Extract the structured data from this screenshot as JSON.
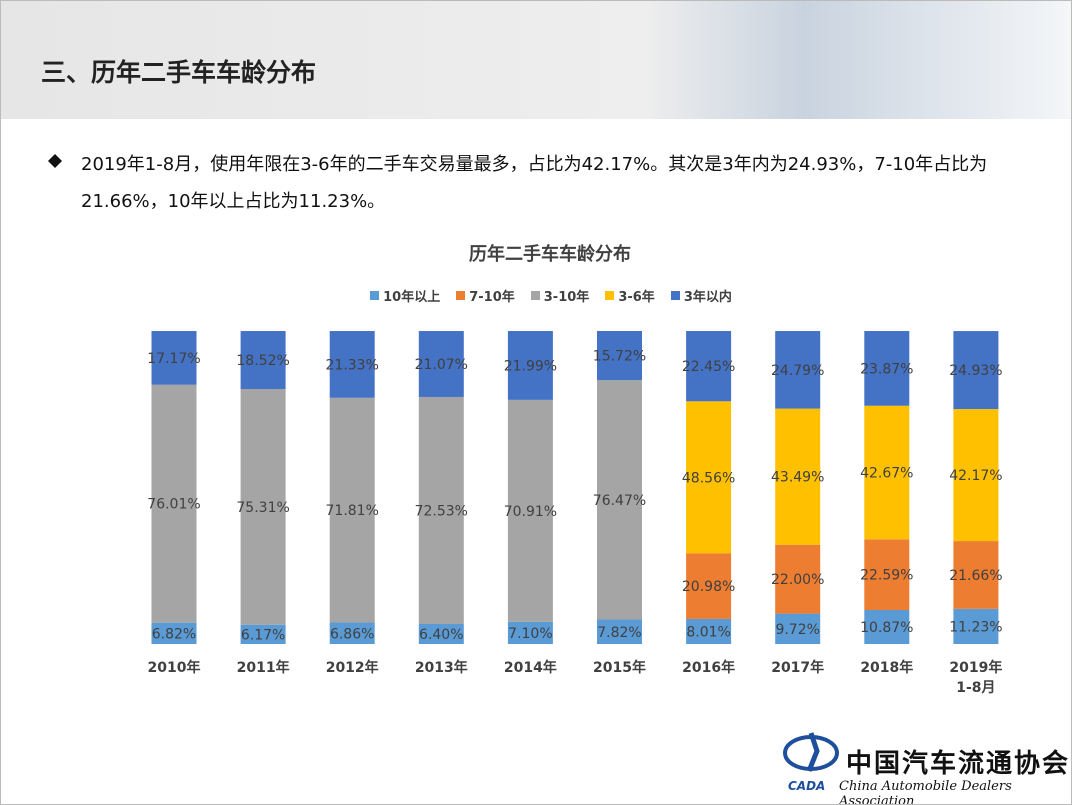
{
  "header": {
    "title": "三、历年二手车车龄分布"
  },
  "bullet": {
    "text": "2019年1-8月，使用年限在3-6年的二手车交易量最多，占比为42.17%。其次是3年内为24.93%，7-10年占比为21.66%，10年以上占比为11.23%。"
  },
  "chart_data": {
    "type": "stacked_bar",
    "title": "历年二手车车龄分布",
    "categories": [
      "2010年",
      "2011年",
      "2012年",
      "2013年",
      "2014年",
      "2015年",
      "2016年",
      "2017年",
      "2018年",
      "2019年\n1-8月"
    ],
    "series": [
      {
        "name": "10年以上",
        "color": "#5b9bd5",
        "values": [
          6.82,
          6.17,
          6.86,
          6.4,
          7.1,
          7.82,
          8.01,
          9.72,
          10.87,
          11.23
        ],
        "value_labels": [
          "6.82%",
          "6.17%",
          "6.86%",
          "6.40%",
          "7.10%",
          "7.82%",
          "8.01%",
          "9.72%",
          "10.87%",
          "11.23%"
        ]
      },
      {
        "name": "7-10年",
        "color": "#ed7d31",
        "values": [
          null,
          null,
          null,
          null,
          null,
          null,
          20.98,
          22.0,
          22.59,
          21.66
        ],
        "value_labels": [
          null,
          null,
          null,
          null,
          null,
          null,
          "20.98%",
          "22.00%",
          "22.59%",
          "21.66%"
        ]
      },
      {
        "name": "3-10年",
        "color": "#a5a5a5",
        "values": [
          76.01,
          75.31,
          71.81,
          72.53,
          70.91,
          76.47,
          null,
          null,
          null,
          null
        ],
        "value_labels": [
          "76.01%",
          "75.31%",
          "71.81%",
          "72.53%",
          "70.91%",
          "76.47%",
          null,
          null,
          null,
          null
        ]
      },
      {
        "name": "3-6年",
        "color": "#ffc000",
        "values": [
          null,
          null,
          null,
          null,
          null,
          null,
          48.56,
          43.49,
          42.67,
          42.17
        ],
        "value_labels": [
          null,
          null,
          null,
          null,
          null,
          null,
          "48.56%",
          "43.49%",
          "42.67%",
          "42.17%"
        ]
      },
      {
        "name": "3年以内",
        "color": "#4472c4",
        "values": [
          17.17,
          18.52,
          21.33,
          21.07,
          21.99,
          15.72,
          22.45,
          24.79,
          23.87,
          24.93
        ],
        "value_labels": [
          "17.17%",
          "18.52%",
          "21.33%",
          "21.07%",
          "21.99%",
          "15.72%",
          "22.45%",
          "24.79%",
          "23.87%",
          "24.93%"
        ]
      }
    ]
  },
  "logo": {
    "mark": "CADA",
    "name": "中国汽车流通协会",
    "english": "China Automobile Dealers Association"
  }
}
